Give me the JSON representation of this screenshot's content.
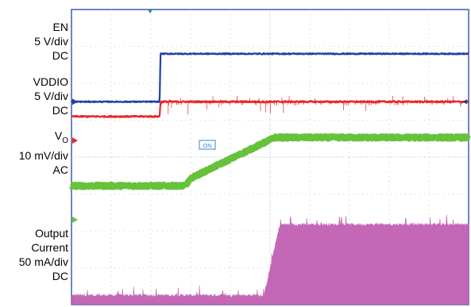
{
  "chart_data": {
    "type": "line",
    "xlim": [
      0,
      10
    ],
    "grid": true,
    "channels": [
      {
        "id": "en",
        "label_lines": [
          "EN",
          "5 V/div",
          "DC"
        ],
        "color": "#1f3fa8",
        "x": [
          0,
          2.22,
          2.24,
          10
        ],
        "y": [
          5.5,
          5.5,
          6.8,
          6.8
        ],
        "noise": 0.015
      },
      {
        "id": "vddio",
        "label_lines": [
          "VDDIO",
          "5 V/div",
          "DC"
        ],
        "color": "#e8262a",
        "x": [
          0,
          2.22,
          2.24,
          10
        ],
        "y": [
          5.1,
          5.1,
          5.5,
          5.5
        ],
        "noise": 0.02,
        "spikes": true
      },
      {
        "id": "vo",
        "label_lines": [
          "V",
          "O",
          "10 mV/div",
          "AC"
        ],
        "color": "#66c23a",
        "x": [
          0,
          2.85,
          3.05,
          5.12,
          10
        ],
        "y": [
          3.22,
          3.22,
          3.45,
          4.53,
          4.53
        ],
        "noise": 0.04
      },
      {
        "id": "iout",
        "label_lines": [
          "Output",
          "Current",
          "50 mA/div",
          "DC"
        ],
        "color": "#c05bb0",
        "x": [
          0,
          4.85,
          5.25,
          10
        ],
        "y": [
          0.23,
          0.23,
          2.15,
          2.15
        ],
        "noise": 0.08
      }
    ],
    "ground_markers": [
      {
        "color": "#1f3fa8",
        "y": 5.5
      },
      {
        "color": "#e8262a",
        "y": 4.45
      },
      {
        "color": "#66c23a",
        "y": 2.3
      }
    ],
    "cursor_label": "ON"
  }
}
